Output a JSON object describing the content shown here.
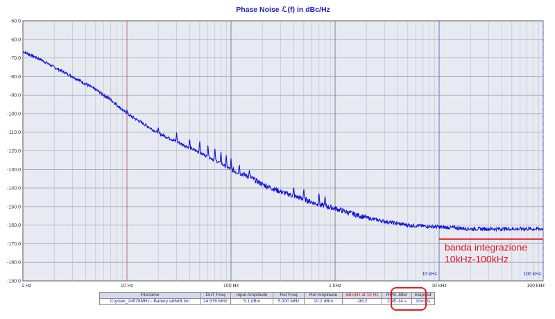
{
  "chart_data": {
    "type": "line",
    "title": "Phase Noise ℒ(f) in dBc/Hz",
    "x_scale": "log",
    "xlim": [
      1,
      100000
    ],
    "ylim": [
      -190,
      -50
    ],
    "grid": true,
    "x_tick_labels": [
      {
        "x": 1,
        "label": "1 Hz"
      },
      {
        "x": 10,
        "label": "10 Hz"
      },
      {
        "x": 100,
        "label": "100 Hz"
      },
      {
        "x": 1000,
        "label": "1 kHz"
      },
      {
        "x": 10000,
        "label": "10 kHz"
      },
      {
        "x": 100000,
        "label": "100 kHz"
      }
    ],
    "y_ticks": [
      -50,
      -60,
      -70,
      -80,
      -90,
      -100,
      -110,
      -120,
      -130,
      -140,
      -150,
      -160,
      -170,
      -180,
      -190
    ],
    "y_tick_labels": [
      "-50.0",
      "-60.0",
      "-70.0",
      "-80.0",
      "-90.0",
      "-100.0",
      "-110.0",
      "-120.0",
      "-130.0",
      "-140.0",
      "-150.0",
      "-160.0",
      "-170.0",
      "-180.0",
      "-190.0"
    ],
    "markers": [
      {
        "x": 10,
        "color": "#e06060",
        "label": ""
      },
      {
        "x": 10000,
        "color": "#5a6ee0",
        "label": "10 kHz"
      },
      {
        "x": 100000,
        "color": "#5a6ee0",
        "label": "100 kHz"
      }
    ],
    "series": [
      {
        "color": "#1515d8",
        "x": [
          1,
          1.5,
          2,
          3,
          5,
          7,
          10,
          15,
          20,
          30,
          50,
          70,
          100,
          150,
          200,
          300,
          500,
          700,
          1000,
          1500,
          2000,
          3000,
          5000,
          7000,
          10000,
          15000,
          20000,
          30000,
          50000,
          70000,
          100000
        ],
        "y": [
          -66.5,
          -71,
          -75,
          -80,
          -87,
          -92.5,
          -100,
          -106,
          -110.5,
          -115,
          -121,
          -125,
          -130,
          -134,
          -138,
          -142,
          -146,
          -149,
          -151,
          -154,
          -156,
          -158,
          -160,
          -160.5,
          -161,
          -161.5,
          -162,
          -162,
          -162,
          -162,
          -162
        ],
        "spurs": [
          {
            "x": 10,
            "y": -98
          },
          {
            "x": 20,
            "y": -107
          },
          {
            "x": 30,
            "y": -110
          },
          {
            "x": 40,
            "y": -113
          },
          {
            "x": 50,
            "y": -114
          },
          {
            "x": 60,
            "y": -116
          },
          {
            "x": 70,
            "y": -118
          },
          {
            "x": 80,
            "y": -120
          },
          {
            "x": 90,
            "y": -122
          },
          {
            "x": 100,
            "y": -124
          },
          {
            "x": 120,
            "y": -127
          },
          {
            "x": 150,
            "y": -130
          },
          {
            "x": 400,
            "y": -139
          },
          {
            "x": 500,
            "y": -140
          },
          {
            "x": 700,
            "y": -142
          },
          {
            "x": 800,
            "y": -144
          }
        ]
      }
    ],
    "annotation_lines": [
      "banda integrazione",
      "10kHz-100kHz"
    ],
    "annotation_range": [
      10000,
      100000
    ],
    "annotation_level": -167.5
  },
  "summary": {
    "headers": [
      "Filename",
      "DUT Freq",
      "Input Amplitude",
      "Ref Freq",
      "Ref Amplitude",
      "dBc/Hz at 10 Hz",
      "RMS Jitter",
      "Elapsed"
    ],
    "values": [
      "Crystek_24576MHz - Battery att6dB.tim",
      "24.576 MHz",
      "5.1 dBm",
      "5.000 MHz",
      "10.2 dBm",
      "-99.2",
      "2.4E-14 s",
      "10m 0s"
    ]
  },
  "colors": {
    "plot_background": "#e8eaf2",
    "trace": "#1515d8",
    "annotation": "#e8141e",
    "title": "#1b1bb0"
  }
}
